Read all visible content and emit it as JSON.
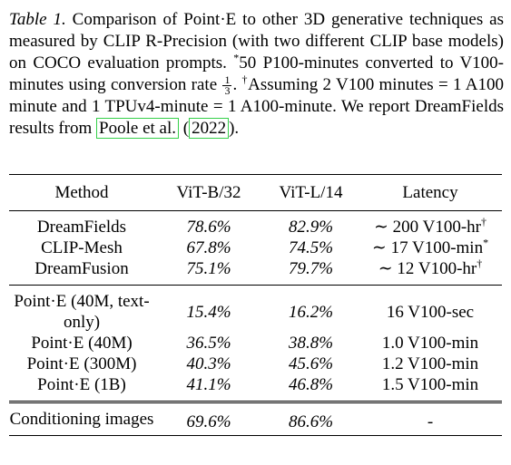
{
  "caption": {
    "label": "Table 1.",
    "text_1": "Comparison of Point·E to other 3D generative techniques as measured by CLIP R-Precision (with two different CLIP base models) on COCO evaluation prompts.",
    "star": "*",
    "text_2": "50 P100-minutes converted to V100-minutes using conversion rate",
    "frac_num": "1",
    "frac_den": "3",
    "text_3": ".",
    "dagger": "†",
    "text_4": "Assuming 2 V100 minutes = 1 A100 minute and 1 TPUv4-minute = 1 A100-minute. We report DreamFields results from",
    "cite_author": "Poole et al.",
    "cite_open": "(",
    "cite_year": "2022",
    "cite_close": ")."
  },
  "table": {
    "headers": [
      "Method",
      "ViT-B/32",
      "ViT-L/14",
      "Latency"
    ],
    "group1": [
      {
        "method": "DreamFields",
        "b32": "78.6%",
        "l14": "82.9%",
        "latency": "∼ 200 V100-hr",
        "mark": "†"
      },
      {
        "method": "CLIP-Mesh",
        "b32": "67.8%",
        "l14": "74.5%",
        "latency": "∼ 17 V100-min",
        "mark": "*"
      },
      {
        "method": "DreamFusion",
        "b32": "75.1%",
        "l14": "79.7%",
        "latency": "∼ 12 V100-hr",
        "mark": "†"
      }
    ],
    "group2": [
      {
        "method": "Point·E (40M, text-only)",
        "b32": "15.4%",
        "l14": "16.2%",
        "latency": "16 V100-sec"
      },
      {
        "method": "Point·E (40M)",
        "b32": "36.5%",
        "l14": "38.8%",
        "latency": "1.0 V100-min"
      },
      {
        "method": "Point·E (300M)",
        "b32": "40.3%",
        "l14": "45.6%",
        "latency": "1.2 V100-min"
      },
      {
        "method": "Point·E (1B)",
        "b32": "41.1%",
        "l14": "46.8%",
        "latency": "1.5 V100-min"
      }
    ],
    "group3": [
      {
        "method": "Conditioning images",
        "b32": "69.6%",
        "l14": "86.6%",
        "latency": "-"
      }
    ]
  }
}
